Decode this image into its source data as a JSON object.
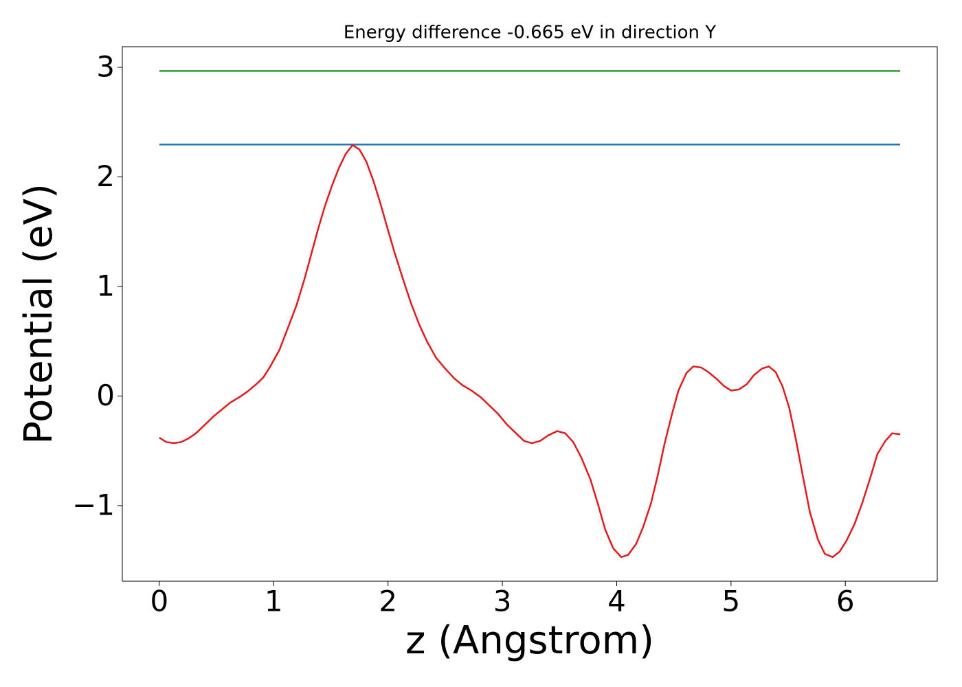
{
  "chart_data": {
    "type": "line",
    "title": "Energy difference -0.665 eV in direction Y",
    "x_label": "z (Angstrom)",
    "y_label": "Potential (eV)",
    "xlim": [
      -0.324,
      6.804
    ],
    "ylim": [
      -1.69,
      3.188
    ],
    "xticks": [
      0,
      1,
      2,
      3,
      4,
      5,
      6
    ],
    "yticks": [
      {
        "value": -1,
        "label": "−1"
      },
      0,
      1,
      2,
      3
    ],
    "series": [
      {
        "color": "#2ca02c",
        "x": [
          0,
          6.48
        ],
        "values": [
          2.966,
          2.966
        ]
      },
      {
        "color": "#1f77b4",
        "x": [
          0,
          6.48
        ],
        "values": [
          2.295,
          2.295
        ]
      },
      {
        "color": "#e31a1c",
        "x": [
          0,
          0.06,
          0.13,
          0.19,
          0.25,
          0.32,
          0.4,
          0.48,
          0.55,
          0.62,
          0.7,
          0.77,
          0.85,
          0.91,
          0.97,
          1.05,
          1.12,
          1.2,
          1.27,
          1.33,
          1.39,
          1.45,
          1.51,
          1.57,
          1.63,
          1.69,
          1.75,
          1.81,
          1.87,
          1.93,
          1.99,
          2.06,
          2.13,
          2.2,
          2.27,
          2.34,
          2.42,
          2.5,
          2.58,
          2.65,
          2.73,
          2.81,
          2.89,
          2.96,
          3.04,
          3.12,
          3.19,
          3.26,
          3.33,
          3.4,
          3.48,
          3.55,
          3.62,
          3.69,
          3.77,
          3.84,
          3.9,
          3.97,
          4.04,
          4.1,
          4.17,
          4.23,
          4.3,
          4.36,
          4.42,
          4.48,
          4.54,
          4.61,
          4.67,
          4.74,
          4.8,
          4.87,
          4.94,
          5.0,
          5.07,
          5.14,
          5.2,
          5.27,
          5.33,
          5.39,
          5.45,
          5.51,
          5.57,
          5.63,
          5.69,
          5.76,
          5.82,
          5.89,
          5.95,
          6.01,
          6.08,
          6.15,
          6.22,
          6.28,
          6.35,
          6.41,
          6.48
        ],
        "values": [
          -0.38,
          -0.42,
          -0.43,
          -0.42,
          -0.39,
          -0.34,
          -0.26,
          -0.18,
          -0.12,
          -0.06,
          -0.01,
          0.04,
          0.11,
          0.17,
          0.27,
          0.42,
          0.61,
          0.83,
          1.07,
          1.3,
          1.53,
          1.74,
          1.92,
          2.08,
          2.21,
          2.29,
          2.25,
          2.14,
          1.97,
          1.77,
          1.55,
          1.3,
          1.07,
          0.85,
          0.66,
          0.5,
          0.35,
          0.25,
          0.16,
          0.1,
          0.05,
          -0.01,
          -0.09,
          -0.16,
          -0.26,
          -0.34,
          -0.41,
          -0.43,
          -0.41,
          -0.36,
          -0.32,
          -0.34,
          -0.42,
          -0.56,
          -0.76,
          -1.0,
          -1.22,
          -1.39,
          -1.47,
          -1.45,
          -1.35,
          -1.2,
          -0.98,
          -0.72,
          -0.43,
          -0.18,
          0.05,
          0.21,
          0.27,
          0.26,
          0.22,
          0.16,
          0.09,
          0.05,
          0.06,
          0.11,
          0.19,
          0.25,
          0.27,
          0.22,
          0.09,
          -0.11,
          -0.41,
          -0.74,
          -1.06,
          -1.31,
          -1.44,
          -1.47,
          -1.42,
          -1.32,
          -1.17,
          -0.97,
          -0.74,
          -0.53,
          -0.41,
          -0.34,
          -0.35
        ]
      }
    ]
  }
}
